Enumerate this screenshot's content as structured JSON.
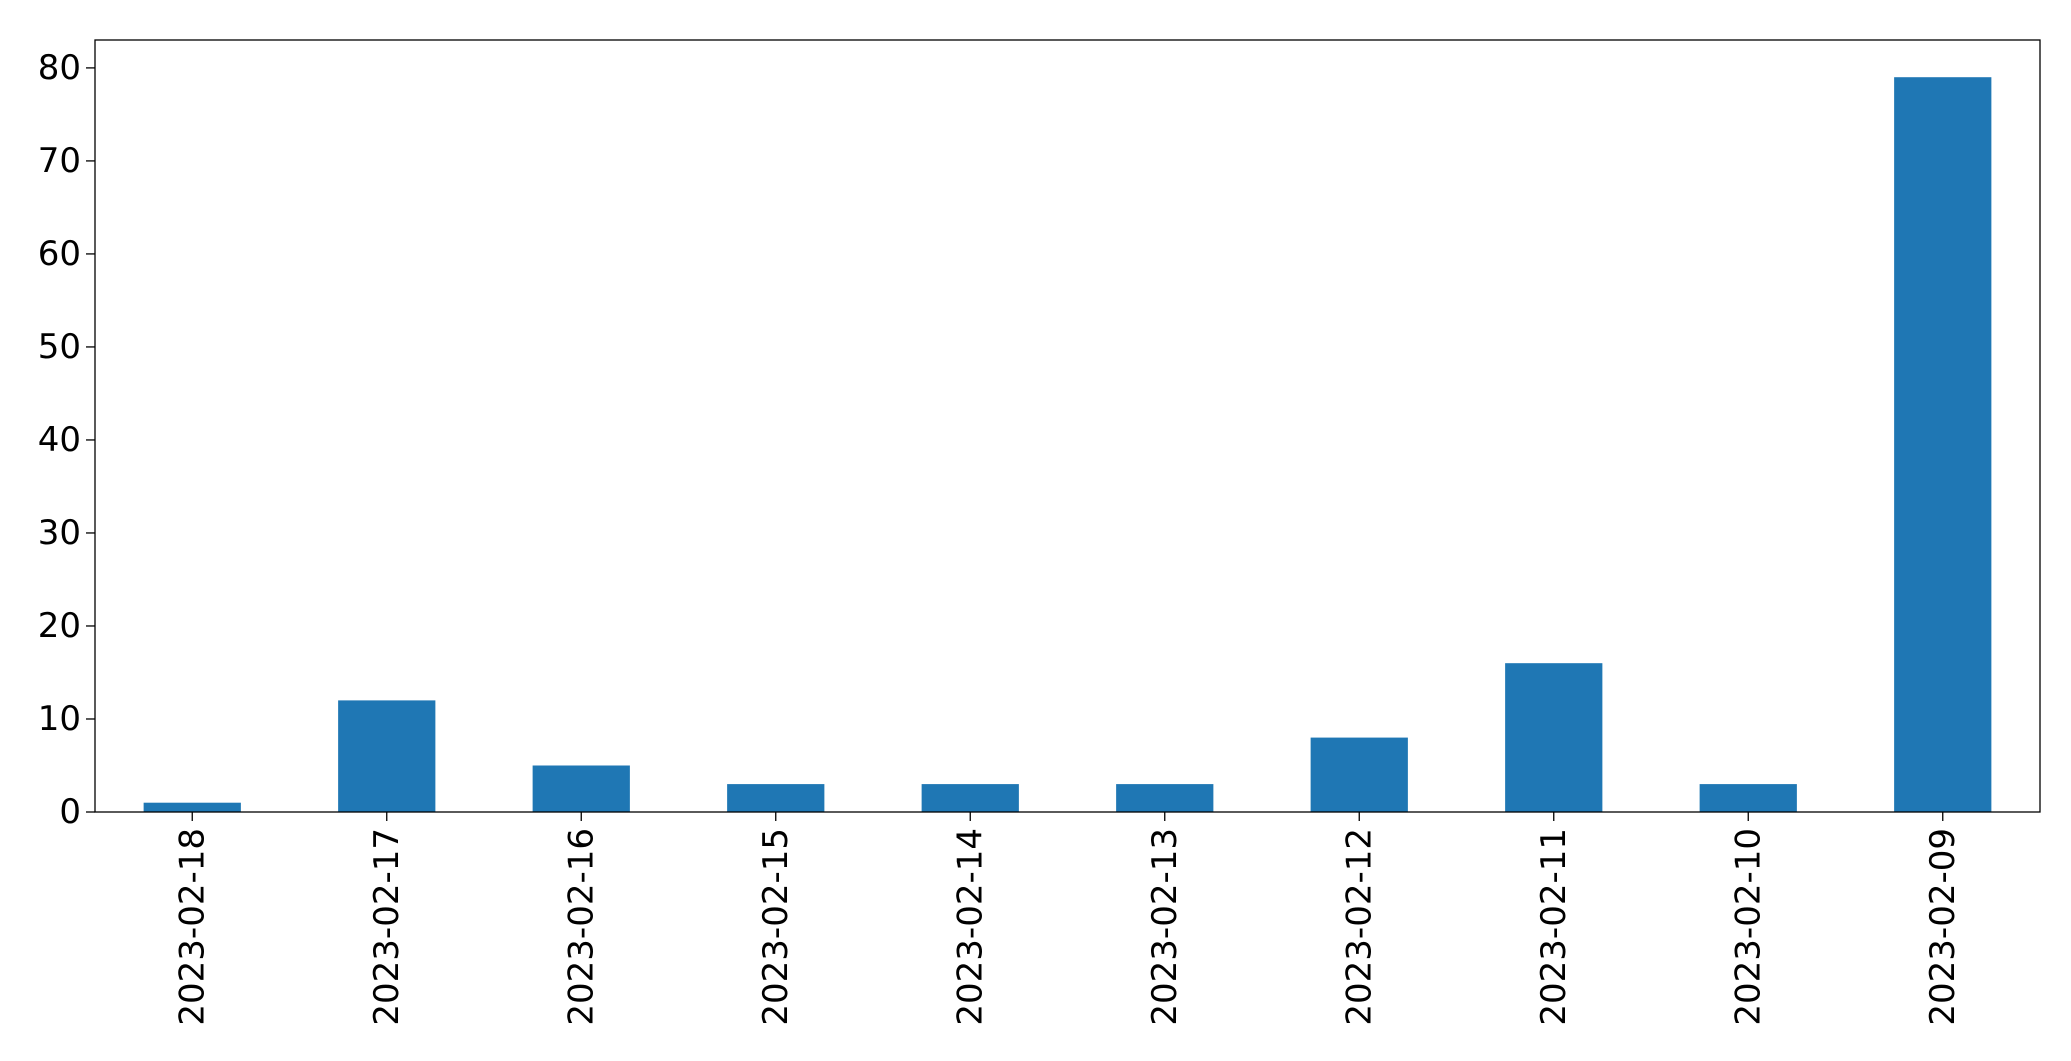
{
  "chart_data": {
    "type": "bar",
    "title": "",
    "xlabel": "",
    "ylabel": "",
    "categories": [
      "2023-02-18",
      "2023-02-17",
      "2023-02-16",
      "2023-02-15",
      "2023-02-14",
      "2023-02-13",
      "2023-02-12",
      "2023-02-11",
      "2023-02-10",
      "2023-02-09"
    ],
    "values": [
      1,
      12,
      5,
      3,
      3,
      3,
      8,
      16,
      3,
      79
    ],
    "ylim": [
      0,
      83
    ],
    "yticks": [
      0,
      10,
      20,
      30,
      40,
      50,
      60,
      70,
      80
    ],
    "bar_color": "#1f77b4",
    "grid": false,
    "legend": "none"
  }
}
